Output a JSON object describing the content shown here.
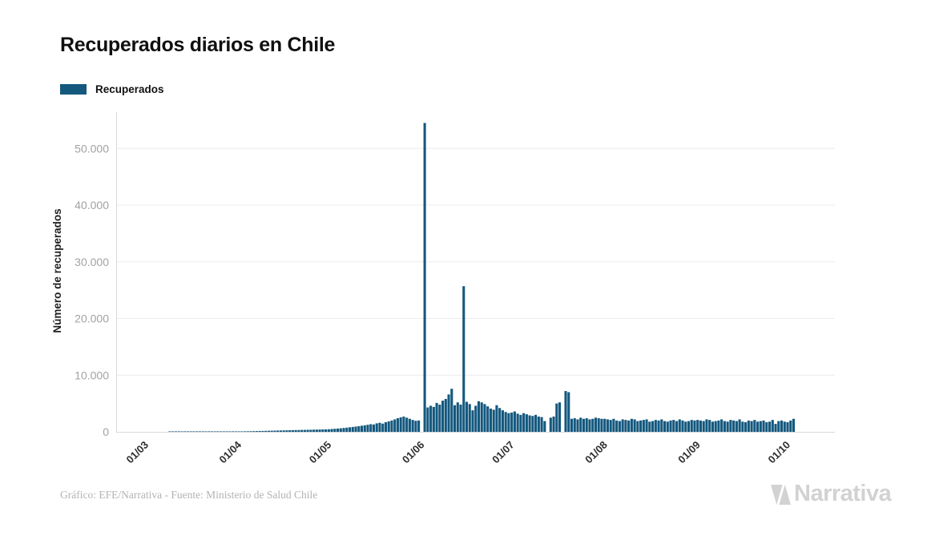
{
  "page": {
    "title": "Recuperados diarios en Chile",
    "footer_credit": "Gráfico: EFE/Narrativa - Fuente: Ministerio de Salud Chile",
    "brand_name": "Narrativa"
  },
  "legend": {
    "label": "Recuperados"
  },
  "colors": {
    "bar": "#14587e",
    "grid": "#ececec",
    "axis": "#d9d9d9",
    "y_tick_text": "#a2a2a2",
    "x_tick_text": "#2e2e2e",
    "y_axis_label_text": "#1f1f1f",
    "title_text": "#101010",
    "footer_text": "#b3b3b3",
    "brand": "#d2d2d2"
  },
  "chart_data": {
    "type": "bar",
    "title": "Recuperados diarios en Chile",
    "xlabel": "",
    "ylabel": "Número de recuperados",
    "series_name": "Recuperados",
    "grid": true,
    "legend_position": "top-left",
    "start_date": "2020-03-01",
    "end_date": "2020-10-03",
    "ylim": [
      0,
      55000
    ],
    "y_ticks": [
      0,
      10000,
      20000,
      30000,
      40000,
      50000
    ],
    "y_tick_labels": [
      "0",
      "10.000",
      "20.000",
      "30.000",
      "40.000",
      "50.000"
    ],
    "x_tick_labels": [
      "01/03",
      "01/04",
      "01/05",
      "01/06",
      "01/07",
      "01/08",
      "01/09",
      "01/10"
    ],
    "x_tick_day_index": [
      0,
      31,
      61,
      92,
      122,
      153,
      184,
      214
    ],
    "notable_points": {
      "max_spike": {
        "date": "2020-06-02",
        "value": 54500
      },
      "second_spike": {
        "date": "2020-06-15",
        "value": 25700
      },
      "july_spikes": [
        {
          "date": "2020-07-16",
          "value": 5000
        },
        {
          "date": "2020-07-17",
          "value": 5200
        },
        {
          "date": "2020-07-19",
          "value": 7200
        },
        {
          "date": "2020-07-20",
          "value": 7000
        }
      ]
    },
    "values": [
      0,
      0,
      0,
      0,
      0,
      0,
      0,
      0,
      2,
      3,
      4,
      5,
      6,
      8,
      10,
      12,
      14,
      16,
      18,
      20,
      24,
      28,
      32,
      36,
      40,
      45,
      50,
      55,
      60,
      65,
      70,
      75,
      80,
      90,
      100,
      110,
      120,
      135,
      150,
      160,
      175,
      190,
      200,
      215,
      230,
      245,
      255,
      270,
      285,
      295,
      310,
      320,
      335,
      345,
      360,
      370,
      385,
      395,
      410,
      425,
      440,
      460,
      500,
      540,
      580,
      620,
      680,
      740,
      800,
      860,
      930,
      1000,
      1080,
      1150,
      1250,
      1350,
      1300,
      1500,
      1600,
      1450,
      1700,
      1850,
      2000,
      2200,
      2400,
      2550,
      2700,
      2500,
      2300,
      2100,
      1950,
      2000,
      0,
      54500,
      4300,
      4600,
      4400,
      5100,
      4800,
      5500,
      5800,
      6600,
      7600,
      4700,
      5200,
      4800,
      25700,
      5300,
      4900,
      3800,
      4600,
      5400,
      5200,
      4900,
      4500,
      4100,
      3900,
      4700,
      4200,
      3800,
      3500,
      3300,
      3400,
      3600,
      3200,
      3000,
      3300,
      3100,
      2900,
      2800,
      3000,
      2700,
      2600,
      1900,
      0,
      2500,
      2700,
      5000,
      5200,
      0,
      7200,
      7000,
      2300,
      2400,
      2200,
      2500,
      2300,
      2400,
      2200,
      2300,
      2500,
      2400,
      2300,
      2300,
      2200,
      2100,
      2300,
      2000,
      1900,
      2200,
      2100,
      2000,
      2300,
      2200,
      1900,
      2000,
      2100,
      2200,
      1800,
      1900,
      2100,
      2000,
      2200,
      1900,
      1800,
      2000,
      2100,
      1900,
      2200,
      2000,
      1800,
      1900,
      2100,
      2000,
      2100,
      2000,
      1900,
      2200,
      2100,
      1800,
      1900,
      2000,
      2200,
      1900,
      1800,
      2100,
      2000,
      1900,
      2200,
      1800,
      1700,
      2000,
      1900,
      2100,
      1800,
      1900,
      2000,
      1700,
      1800,
      2100,
      1400,
      1900,
      2000,
      1800,
      1700,
      2000,
      2300
    ]
  }
}
